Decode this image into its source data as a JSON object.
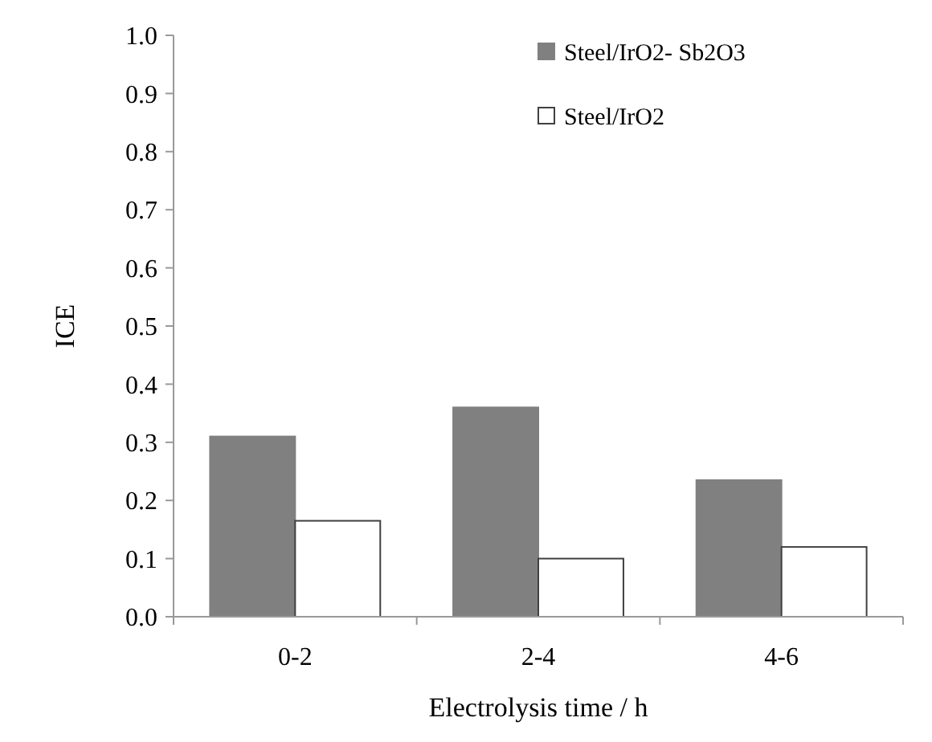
{
  "chart_data": {
    "type": "bar",
    "xlabel": "Electrolysis time / h",
    "ylabel": "ICE",
    "categories": [
      "0-2",
      "2-4",
      "4-6"
    ],
    "series": [
      {
        "name": "Steel/IrO2- Sb2O3",
        "color": "#808080",
        "values": [
          0.31,
          0.36,
          0.235
        ]
      },
      {
        "name": "Steel/IrO2",
        "color": "#ffffff",
        "values": [
          0.165,
          0.1,
          0.12
        ]
      }
    ],
    "ylim": [
      0,
      1
    ],
    "yticks": [
      {
        "value": 0,
        "label": "0.0"
      },
      {
        "value": 0.1,
        "label": "0.1"
      },
      {
        "value": 0.2,
        "label": "0.2"
      },
      {
        "value": 0.3,
        "label": "0.3"
      },
      {
        "value": 0.4,
        "label": "0.4"
      },
      {
        "value": 0.5,
        "label": "0.5"
      },
      {
        "value": 0.6,
        "label": "0.6"
      },
      {
        "value": 0.7,
        "label": "0.7"
      },
      {
        "value": 0.8,
        "label": "0.8"
      },
      {
        "value": 0.9,
        "label": "0.9"
      },
      {
        "value": 1,
        "label": "1.0"
      }
    ],
    "grid": false,
    "legend": "top right"
  }
}
